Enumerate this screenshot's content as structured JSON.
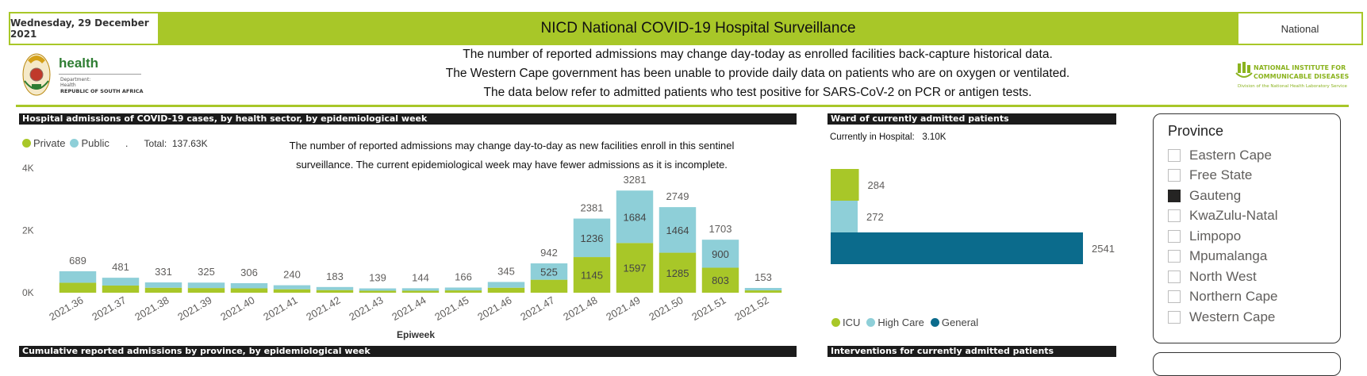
{
  "header": {
    "date": "Wednesday, 29 December 2021",
    "title": "NICD National COVID-19 Hospital Surveillance",
    "region": "National"
  },
  "logos": {
    "health_word": "health",
    "health_dept_1": "Department:",
    "health_dept_2": "Health",
    "health_rsa": "REPUBLIC OF SOUTH AFRICA",
    "nicd_line_1": "NATIONAL INSTITUTE FOR",
    "nicd_line_2": "COMMUNICABLE DISEASES",
    "nicd_line_3": "Division of the National Health Laboratory Service"
  },
  "notices": [
    "The number of reported admissions may change day-today as enrolled facilities back-capture historical data.",
    "The Western Cape government has been unable to provide daily data on patients who are on oxygen or ventilated.",
    "The data below refer to admitted patients who test positive for SARS-CoV-2 on PCR or antigen tests."
  ],
  "admissions": {
    "section_title": "Hospital admissions of COVID-19 cases, by health sector, by epidemiological week",
    "legend_private": "Private",
    "legend_public": "Public",
    "legend_sep": ".",
    "total_label": "Total:",
    "total_value": "137.63K",
    "note_line_1": "The number of reported admissions may change day-to-day as new facilities enroll in this sentinel",
    "note_line_2": "surveillance. The current epidemiological week may have fewer admissions as it is incomplete."
  },
  "ward": {
    "section_title": "Ward of currently admitted patients",
    "current_label": "Currently in Hospital:",
    "current_value": "3.10K",
    "legend": [
      "ICU",
      "High Care",
      "General"
    ]
  },
  "province": {
    "title": "Province",
    "items": [
      {
        "label": "Eastern Cape",
        "checked": false
      },
      {
        "label": "Free State",
        "checked": false
      },
      {
        "label": "Gauteng",
        "checked": true
      },
      {
        "label": "KwaZulu-Natal",
        "checked": false
      },
      {
        "label": "Limpopo",
        "checked": false
      },
      {
        "label": "Mpumalanga",
        "checked": false
      },
      {
        "label": "North West",
        "checked": false
      },
      {
        "label": "Northern Cape",
        "checked": false
      },
      {
        "label": "Western Cape",
        "checked": false
      }
    ]
  },
  "lower_sections": {
    "cumulative_title": "Cumulative reported admissions by province, by epidemiological week",
    "interventions_title": "Interventions for currently admitted patients"
  },
  "colors": {
    "green": "#a8c728",
    "teal": "#8ecfd8",
    "general": "#0b6b8c"
  },
  "chart_data": [
    {
      "type": "bar",
      "stacked": true,
      "title": "Hospital admissions of COVID-19 cases, by health sector, by epidemiological week",
      "xlabel": "Epiweek",
      "ylabel": "",
      "ylim": [
        0,
        4000
      ],
      "yticks": [
        "0K",
        "2K",
        "4K"
      ],
      "categories": [
        "2021.36",
        "2021.37",
        "2021.38",
        "2021.39",
        "2021.40",
        "2021.41",
        "2021.42",
        "2021.43",
        "2021.44",
        "2021.45",
        "2021.46",
        "2021.47",
        "2021.48",
        "2021.49",
        "2021.50",
        "2021.51",
        "2021.52"
      ],
      "totals": [
        689,
        481,
        331,
        325,
        306,
        240,
        183,
        139,
        144,
        166,
        345,
        942,
        2381,
        3281,
        2749,
        1703,
        153
      ],
      "series": [
        {
          "name": "Private",
          "values": [
            320,
            230,
            160,
            150,
            140,
            110,
            85,
            65,
            65,
            75,
            160,
            417,
            1145,
            1597,
            1285,
            803,
            75
          ],
          "labels": [
            null,
            null,
            null,
            null,
            null,
            null,
            null,
            null,
            null,
            null,
            null,
            null,
            "1145",
            "1597",
            "1285",
            "803",
            null
          ]
        },
        {
          "name": "Public",
          "values": [
            369,
            251,
            171,
            175,
            166,
            130,
            98,
            74,
            79,
            91,
            185,
            525,
            1236,
            1684,
            1464,
            900,
            78
          ],
          "labels": [
            null,
            null,
            null,
            null,
            null,
            null,
            null,
            null,
            null,
            null,
            null,
            "525",
            "1236",
            "1684",
            "1464",
            "900",
            null
          ]
        }
      ]
    },
    {
      "type": "bar",
      "orientation": "horizontal",
      "title": "Ward of currently admitted patients",
      "categories": [
        "ICU",
        "High Care",
        "General"
      ],
      "values": [
        284,
        272,
        2541
      ],
      "xlim": [
        0,
        2541
      ]
    }
  ]
}
